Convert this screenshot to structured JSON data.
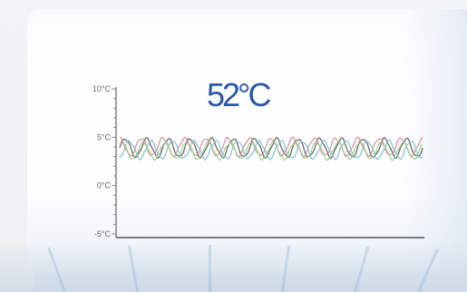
{
  "chart_data": {
    "type": "line",
    "title": "52°C",
    "ylim": [
      -5,
      10
    ],
    "y_ticks": [
      "10°C",
      "5°C",
      "0°C",
      "-5°C"
    ],
    "y_tick_values": [
      10,
      5,
      0,
      -5
    ],
    "series": [
      {
        "color": "#5b5b5b",
        "baseline": 3.9,
        "amplitude": 0.95,
        "cycles": 14,
        "phase": 0.0
      },
      {
        "color": "#d88a9a",
        "baseline": 4.0,
        "amplitude": 0.9,
        "cycles": 14,
        "phase": 0.25
      },
      {
        "color": "#7fbfd0",
        "baseline": 3.7,
        "amplitude": 0.9,
        "cycles": 14,
        "phase": -0.2
      },
      {
        "color": "#9fcf8f",
        "baseline": 3.6,
        "amplitude": 0.85,
        "cycles": 14,
        "phase": 0.15
      }
    ],
    "grid": false
  }
}
